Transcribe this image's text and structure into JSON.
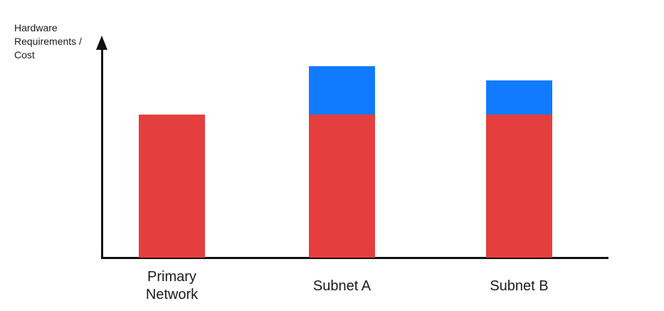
{
  "chart_data": {
    "type": "bar",
    "subtype": "stacked",
    "title": "",
    "xlabel": "",
    "ylabel": "Hardware Requirements / Cost",
    "ylabel_lines": [
      "Hardware",
      "Requirements /",
      "Cost"
    ],
    "categories": [
      "Primary Network",
      "Subnet A",
      "Subnet B"
    ],
    "series": [
      {
        "name": "red-base-segment",
        "color": "#E53E3E",
        "values": [
          100,
          100,
          100
        ]
      },
      {
        "name": "blue-top-segment",
        "color": "#107BFF",
        "values": [
          0,
          34,
          24
        ]
      }
    ],
    "value_units": "relative (no numeric axis shown)",
    "axis": {
      "y_arrow": true,
      "x_arrow": false,
      "ticks": false,
      "gridlines": false,
      "color": "#111111"
    },
    "legend_position": "none",
    "text_color": "#1a1a1a",
    "background": "#ffffff"
  }
}
